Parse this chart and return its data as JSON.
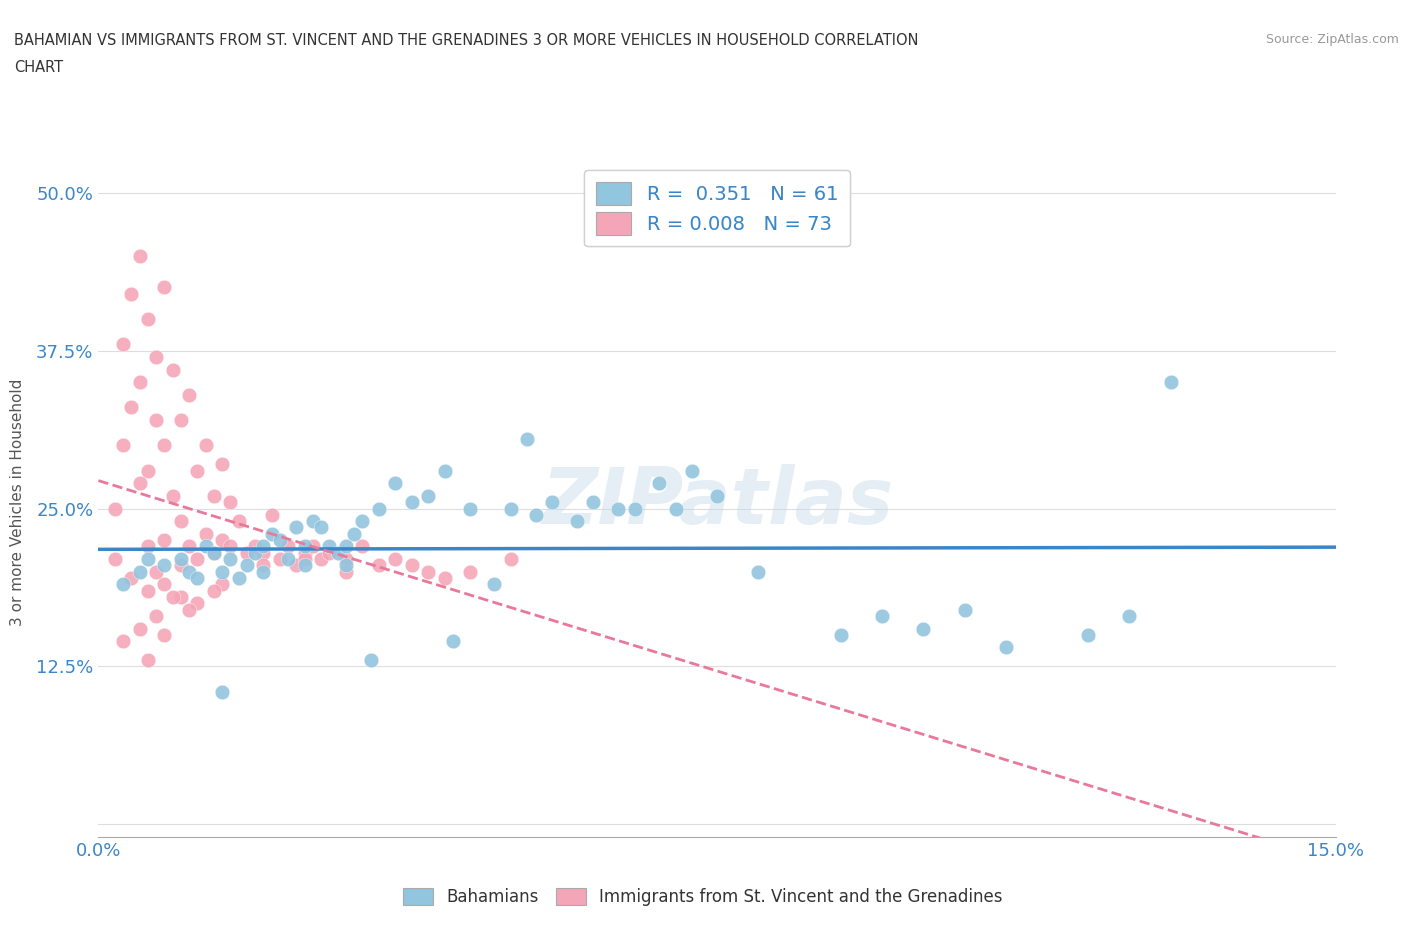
{
  "title_line1": "BAHAMIAN VS IMMIGRANTS FROM ST. VINCENT AND THE GRENADINES 3 OR MORE VEHICLES IN HOUSEHOLD CORRELATION",
  "title_line2": "CHART",
  "source_text": "Source: ZipAtlas.com",
  "ylabel": "3 or more Vehicles in Household",
  "xlim": [
    0.0,
    15.0
  ],
  "ylim": [
    -1.0,
    52.0
  ],
  "xticks": [
    0.0,
    2.5,
    5.0,
    7.5,
    10.0,
    12.5,
    15.0
  ],
  "yticks": [
    0.0,
    12.5,
    25.0,
    37.5,
    50.0
  ],
  "xticklabels": [
    "0.0%",
    "",
    "",
    "",
    "",
    "",
    "15.0%"
  ],
  "yticklabels": [
    "",
    "12.5%",
    "25.0%",
    "37.5%",
    "50.0%"
  ],
  "blue_color": "#92c5de",
  "pink_color": "#f4a6b8",
  "trend_blue": "#3a86c8",
  "trend_pink": "#e8799a",
  "watermark": "ZIPatlas",
  "legend_R1": "0.351",
  "legend_N1": "61",
  "legend_R2": "0.008",
  "legend_N2": "73",
  "blue_scatter_x": [
    0.3,
    0.5,
    0.6,
    0.8,
    1.0,
    1.1,
    1.2,
    1.3,
    1.4,
    1.5,
    1.6,
    1.7,
    1.8,
    1.9,
    2.0,
    2.0,
    2.1,
    2.2,
    2.3,
    2.4,
    2.5,
    2.6,
    2.7,
    2.8,
    2.9,
    3.0,
    3.0,
    3.1,
    3.2,
    3.4,
    3.6,
    3.8,
    4.0,
    4.2,
    4.5,
    4.8,
    5.0,
    5.3,
    5.5,
    5.8,
    6.0,
    6.3,
    6.8,
    7.0,
    7.2,
    7.5,
    8.0,
    9.0,
    9.5,
    10.0,
    10.5,
    11.0,
    12.0,
    12.5,
    4.3,
    3.3,
    2.5,
    1.5,
    5.2,
    6.5,
    13.0
  ],
  "blue_scatter_y": [
    19.0,
    20.0,
    21.0,
    20.5,
    21.0,
    20.0,
    19.5,
    22.0,
    21.5,
    20.0,
    21.0,
    19.5,
    20.5,
    21.5,
    20.0,
    22.0,
    23.0,
    22.5,
    21.0,
    23.5,
    22.0,
    24.0,
    23.5,
    22.0,
    21.5,
    22.0,
    20.5,
    23.0,
    24.0,
    25.0,
    27.0,
    25.5,
    26.0,
    28.0,
    25.0,
    19.0,
    25.0,
    24.5,
    25.5,
    24.0,
    25.5,
    25.0,
    27.0,
    25.0,
    28.0,
    26.0,
    20.0,
    15.0,
    16.5,
    15.5,
    17.0,
    14.0,
    15.0,
    16.5,
    14.5,
    13.0,
    20.5,
    10.5,
    30.5,
    25.0,
    35.0
  ],
  "pink_scatter_x": [
    0.2,
    0.2,
    0.3,
    0.3,
    0.4,
    0.4,
    0.5,
    0.5,
    0.5,
    0.6,
    0.6,
    0.6,
    0.7,
    0.7,
    0.7,
    0.8,
    0.8,
    0.8,
    0.9,
    0.9,
    1.0,
    1.0,
    1.0,
    1.1,
    1.1,
    1.2,
    1.2,
    1.3,
    1.3,
    1.4,
    1.4,
    1.5,
    1.5,
    1.6,
    1.6,
    1.7,
    1.8,
    1.9,
    2.0,
    2.1,
    2.2,
    2.3,
    2.4,
    2.5,
    2.6,
    2.7,
    2.8,
    3.0,
    3.2,
    3.4,
    3.6,
    3.8,
    4.0,
    4.2,
    4.5,
    5.0,
    0.4,
    0.6,
    0.8,
    1.0,
    1.2,
    0.7,
    0.9,
    1.5,
    2.0,
    2.5,
    1.1,
    0.5,
    0.3,
    1.4,
    0.8,
    3.0,
    0.6
  ],
  "pink_scatter_y": [
    21.0,
    25.0,
    30.0,
    38.0,
    33.0,
    42.0,
    35.0,
    27.0,
    45.0,
    28.0,
    40.0,
    22.0,
    32.0,
    37.0,
    20.0,
    30.0,
    42.5,
    22.5,
    26.0,
    36.0,
    24.0,
    32.0,
    20.5,
    34.0,
    22.0,
    28.0,
    21.0,
    30.0,
    23.0,
    26.0,
    21.5,
    22.5,
    28.5,
    22.0,
    25.5,
    24.0,
    21.5,
    22.0,
    21.5,
    24.5,
    21.0,
    22.0,
    20.5,
    21.5,
    22.0,
    21.0,
    21.5,
    21.0,
    22.0,
    20.5,
    21.0,
    20.5,
    20.0,
    19.5,
    20.0,
    21.0,
    19.5,
    18.5,
    19.0,
    18.0,
    17.5,
    16.5,
    18.0,
    19.0,
    20.5,
    21.0,
    17.0,
    15.5,
    14.5,
    18.5,
    15.0,
    20.0,
    13.0
  ]
}
